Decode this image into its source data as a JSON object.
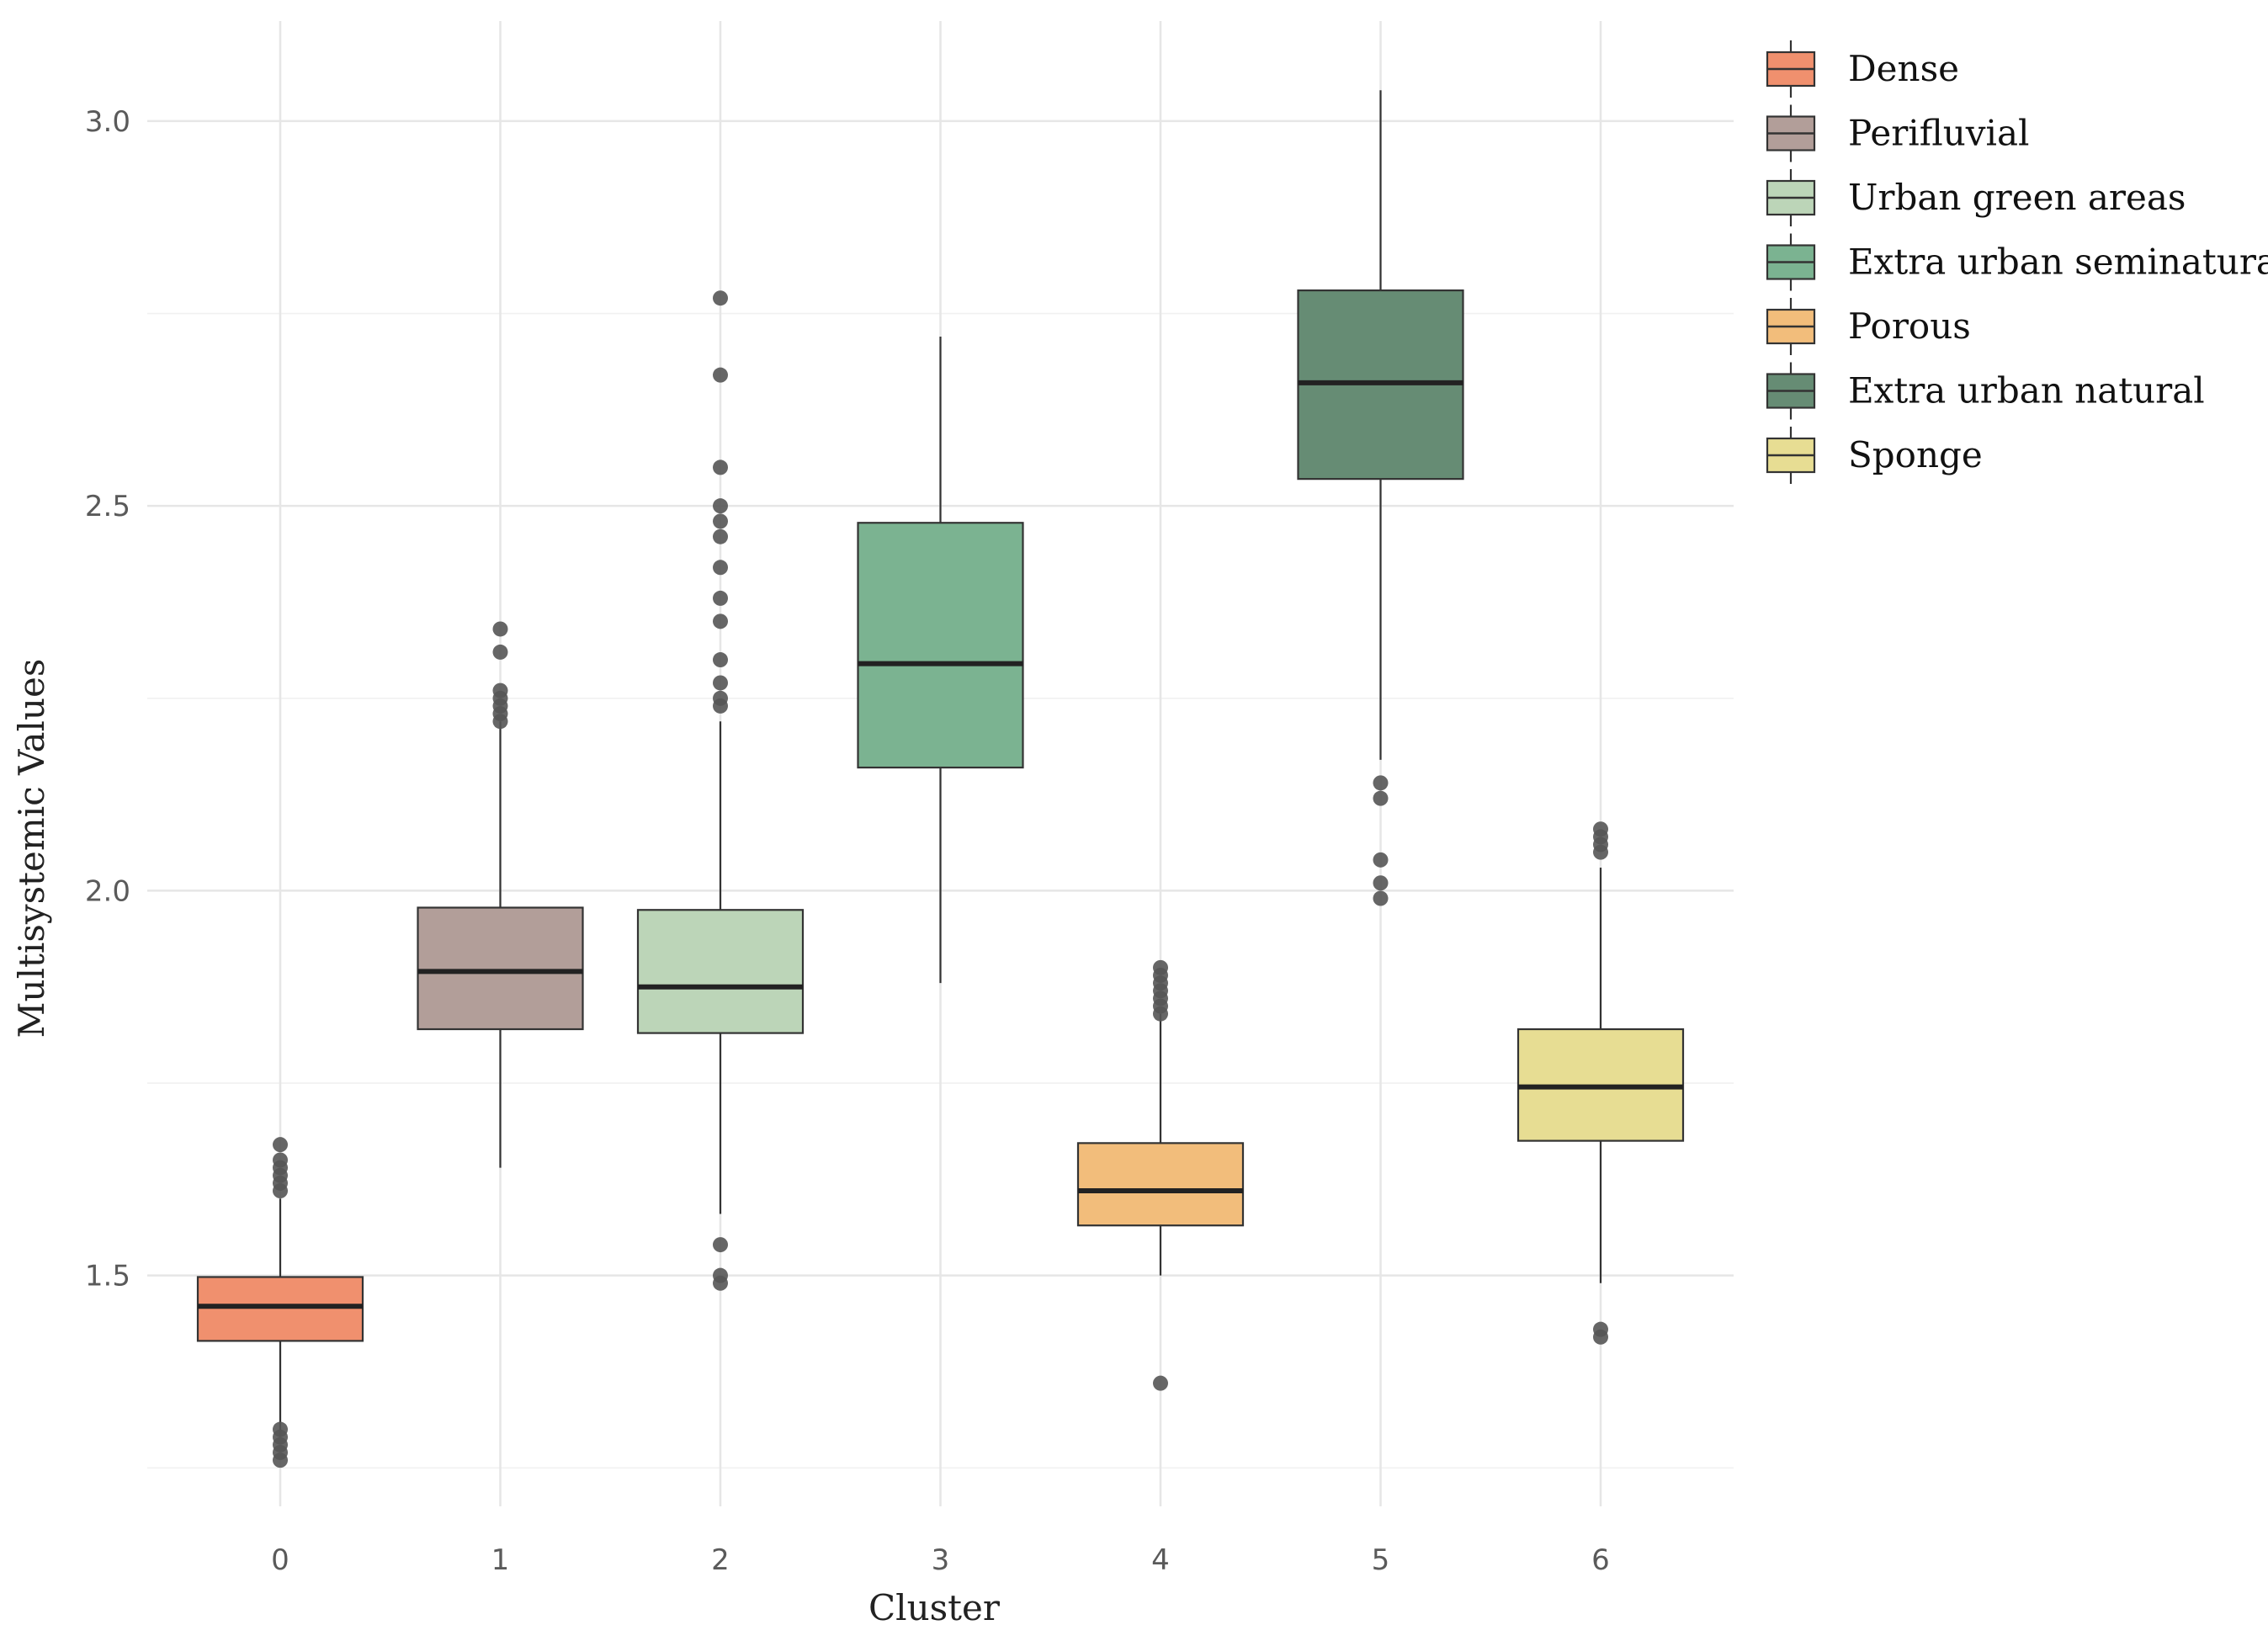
{
  "chart_data": {
    "type": "boxplot",
    "title": "",
    "xlabel": "Cluster",
    "ylabel": "Multisystemic Values",
    "ylim": [
      1.2,
      3.13
    ],
    "yticks": [
      1.5,
      2.0,
      2.5,
      3.0
    ],
    "ytick_labels": [
      "1.5",
      "2.0",
      "2.5",
      "3.0"
    ],
    "minor_yticks": [
      1.25,
      1.75,
      2.25,
      2.75
    ],
    "categories": [
      "0",
      "1",
      "2",
      "3",
      "4",
      "5",
      "6"
    ],
    "legend_position": "top-right",
    "series": [
      {
        "cluster": "0",
        "name": "Dense",
        "color": "#f0906e",
        "whisker_low": 1.29,
        "q1": 1.415,
        "median": 1.46,
        "q3": 1.498,
        "whisker_high": 1.6,
        "outliers": [
          1.26,
          1.27,
          1.28,
          1.29,
          1.3,
          1.61,
          1.62,
          1.63,
          1.64,
          1.65,
          1.67
        ]
      },
      {
        "cluster": "1",
        "name": "Perifluvial",
        "color": "#b29e99",
        "whisker_low": 1.64,
        "q1": 1.82,
        "median": 1.895,
        "q3": 1.978,
        "whisker_high": 2.22,
        "outliers": [
          2.22,
          2.23,
          2.24,
          2.25,
          2.26,
          2.31,
          2.34
        ]
      },
      {
        "cluster": "2",
        "name": "Urban green areas",
        "color": "#bcd5b8",
        "whisker_low": 1.58,
        "q1": 1.815,
        "median": 1.875,
        "q3": 1.975,
        "whisker_high": 2.22,
        "outliers": [
          1.49,
          1.5,
          1.54,
          2.24,
          2.25,
          2.27,
          2.3,
          2.35,
          2.38,
          2.42,
          2.46,
          2.48,
          2.5,
          2.55,
          2.67,
          2.77
        ]
      },
      {
        "cluster": "3",
        "name": "Extra urban seminatural",
        "color": "#7bb391",
        "whisker_low": 1.88,
        "q1": 2.16,
        "median": 2.295,
        "q3": 2.478,
        "whisker_high": 2.72,
        "outliers": []
      },
      {
        "cluster": "4",
        "name": "Porous",
        "color": "#f2bd7b",
        "whisker_low": 1.5,
        "q1": 1.565,
        "median": 1.61,
        "q3": 1.672,
        "whisker_high": 1.84,
        "outliers": [
          1.36,
          1.84,
          1.85,
          1.86,
          1.87,
          1.88,
          1.89,
          1.9
        ]
      },
      {
        "cluster": "5",
        "name": "Extra urban natural",
        "color": "#668c74",
        "whisker_low": 2.17,
        "q1": 2.535,
        "median": 2.66,
        "q3": 2.78,
        "whisker_high": 3.04,
        "outliers": [
          1.99,
          2.01,
          2.04,
          2.12,
          2.14
        ]
      },
      {
        "cluster": "6",
        "name": "Sponge",
        "color": "#e7dd93",
        "whisker_low": 1.49,
        "q1": 1.675,
        "median": 1.745,
        "q3": 1.82,
        "whisker_high": 2.03,
        "outliers": [
          1.42,
          1.43,
          2.05,
          2.06,
          2.07,
          2.08
        ]
      }
    ]
  }
}
